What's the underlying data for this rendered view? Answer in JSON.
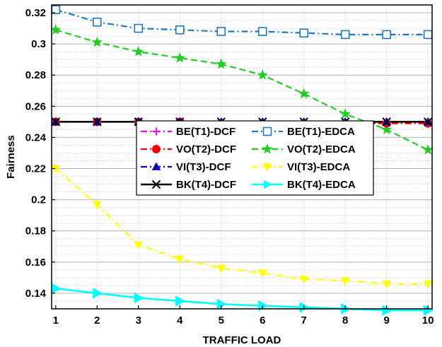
{
  "chart_data": {
    "type": "line",
    "title": "",
    "xlabel": "TRAFFIC LOAD",
    "ylabel": "Fairness",
    "x": [
      1,
      2,
      3,
      4,
      5,
      6,
      7,
      8,
      9,
      10
    ],
    "xlim": [
      0.9,
      10.1
    ],
    "ylim": [
      0.13,
      0.325
    ],
    "xticks": [
      1,
      2,
      3,
      4,
      5,
      6,
      7,
      8,
      9,
      10
    ],
    "yticks": [
      0.14,
      0.16,
      0.18,
      0.2,
      0.22,
      0.24,
      0.26,
      0.28,
      0.3,
      0.32
    ],
    "ytick_labels": [
      "0.14",
      "0.16",
      "0.18",
      "0.2",
      "0.22",
      "0.24",
      "0.26",
      "0.28",
      "0.3",
      "0.32"
    ],
    "grid": true,
    "legend_position": "center-left",
    "series": [
      {
        "name": "BE(T1)-DCF",
        "color": "#ff00ff",
        "marker": "plus",
        "line": "dashdot",
        "values": [
          0.25,
          0.25,
          0.25,
          0.25,
          0.25,
          0.25,
          0.25,
          0.25,
          0.25,
          0.25
        ]
      },
      {
        "name": "BE(T1)-EDCA",
        "color": "#1f77c8",
        "marker": "square",
        "line": "dashdot",
        "values": [
          0.322,
          0.314,
          0.31,
          0.309,
          0.308,
          0.308,
          0.307,
          0.306,
          0.306,
          0.306
        ]
      },
      {
        "name": "VO(T2)-DCF",
        "color": "#ff0000",
        "marker": "circle",
        "line": "dashdot",
        "values": [
          0.25,
          0.25,
          0.25,
          0.25,
          0.249,
          0.249,
          0.249,
          0.249,
          0.249,
          0.249
        ]
      },
      {
        "name": "VO(T2)-EDCA",
        "color": "#22cc22",
        "marker": "star",
        "line": "dash",
        "values": [
          0.309,
          0.301,
          0.295,
          0.291,
          0.287,
          0.28,
          0.268,
          0.255,
          0.245,
          0.232
        ]
      },
      {
        "name": "VI(T3)-DCF",
        "color": "#0000cc",
        "marker": "triangle-up",
        "line": "dashdot",
        "values": [
          0.25,
          0.25,
          0.25,
          0.25,
          0.25,
          0.25,
          0.25,
          0.25,
          0.25,
          0.25
        ]
      },
      {
        "name": "VI(T3)-EDCA",
        "color": "#ffff00",
        "marker": "triangle-down",
        "line": "dashdot",
        "values": [
          0.22,
          0.197,
          0.171,
          0.162,
          0.156,
          0.153,
          0.149,
          0.148,
          0.146,
          0.146
        ]
      },
      {
        "name": "BK(T4)-DCF",
        "color": "#000000",
        "marker": "x",
        "line": "solid",
        "values": [
          0.25,
          0.25,
          0.25,
          0.25,
          0.25,
          0.25,
          0.25,
          0.25,
          0.25,
          0.25
        ]
      },
      {
        "name": "BK(T4)-EDCA",
        "color": "#00ffff",
        "marker": "triangle-right",
        "line": "solid",
        "values": [
          0.143,
          0.14,
          0.137,
          0.135,
          0.133,
          0.132,
          0.131,
          0.13,
          0.129,
          0.129
        ]
      }
    ]
  }
}
